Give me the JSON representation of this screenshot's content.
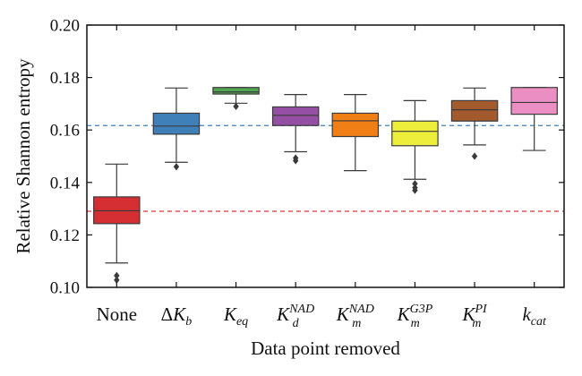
{
  "chart_data": {
    "type": "box",
    "title": "",
    "xlabel": "Data point removed",
    "ylabel": "Relative Shannon entropy",
    "ylim": [
      0.1,
      0.2
    ],
    "yticks": [
      "0.10",
      "0.12",
      "0.14",
      "0.16",
      "0.18",
      "0.20"
    ],
    "grid": false,
    "categories": [
      {
        "base": "None",
        "sub": "",
        "sup": "",
        "italic": false,
        "prefix": ""
      },
      {
        "base": "K",
        "sub": "b",
        "sup": "",
        "italic": true,
        "prefix": "Δ"
      },
      {
        "base": "K",
        "sub": "eq",
        "sup": "",
        "italic": true,
        "prefix": ""
      },
      {
        "base": "K",
        "sub": "d",
        "sup": "NAD",
        "italic": true,
        "prefix": ""
      },
      {
        "base": "K",
        "sub": "m",
        "sup": "NAD",
        "italic": true,
        "prefix": ""
      },
      {
        "base": "K",
        "sub": "m",
        "sup": "G3P",
        "italic": true,
        "prefix": ""
      },
      {
        "base": "K",
        "sub": "m",
        "sup": "PI",
        "italic": true,
        "prefix": ""
      },
      {
        "base": "k",
        "sub": "cat",
        "sup": "",
        "italic": true,
        "prefix": ""
      }
    ],
    "boxes": [
      {
        "color": "#d62f33",
        "q1": 0.1243,
        "median": 0.1292,
        "q3": 0.1345,
        "whisker_low": 0.1093,
        "whisker_high": 0.147,
        "outliers": [
          0.1045,
          0.1028
        ]
      },
      {
        "color": "#3f80b8",
        "q1": 0.1584,
        "median": 0.1615,
        "q3": 0.1664,
        "whisker_low": 0.1477,
        "whisker_high": 0.176,
        "outliers": [
          0.146
        ]
      },
      {
        "color": "#52a551",
        "q1": 0.1737,
        "median": 0.1745,
        "q3": 0.1762,
        "whisker_low": 0.1702,
        "whisker_high": 0.1762,
        "outliers": [
          0.169
        ]
      },
      {
        "color": "#9550a5",
        "q1": 0.1617,
        "median": 0.1656,
        "q3": 0.1688,
        "whisker_low": 0.1517,
        "whisker_high": 0.1735,
        "outliers": [
          0.1493,
          0.1483
        ]
      },
      {
        "color": "#f07f15",
        "q1": 0.1575,
        "median": 0.1635,
        "q3": 0.1664,
        "whisker_low": 0.1445,
        "whisker_high": 0.1735,
        "outliers": []
      },
      {
        "color": "#eded3b",
        "q1": 0.154,
        "median": 0.1595,
        "q3": 0.1634,
        "whisker_low": 0.1412,
        "whisker_high": 0.1712,
        "outliers": [
          0.1395,
          0.138,
          0.137
        ]
      },
      {
        "color": "#a35a2c",
        "q1": 0.1634,
        "median": 0.1677,
        "q3": 0.1712,
        "whisker_low": 0.1543,
        "whisker_high": 0.176,
        "outliers": [
          0.15
        ]
      },
      {
        "color": "#ea8ec3",
        "q1": 0.166,
        "median": 0.1705,
        "q3": 0.1762,
        "whisker_low": 0.1522,
        "whisker_high": 0.1762,
        "outliers": []
      }
    ],
    "reference_lines": [
      {
        "y": 0.1617,
        "color": "#3f80b8",
        "style": "dashed"
      },
      {
        "y": 0.129,
        "color": "#e8303a",
        "style": "dashed"
      }
    ]
  }
}
